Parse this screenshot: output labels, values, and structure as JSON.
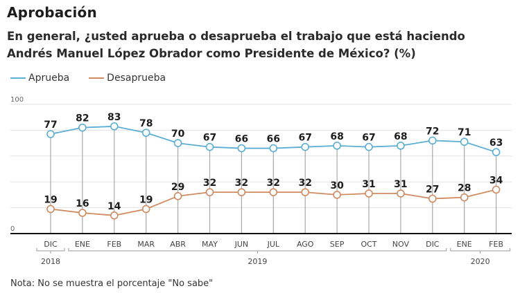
{
  "header": {
    "title": "Aprobación",
    "subtitle_line1": "En general, ¿usted aprueba o desaprueba el trabajo que está haciendo",
    "subtitle_line2": "Andrés Manuel López Obrador como Presidente de México?  (%)"
  },
  "legend": [
    {
      "label": "Aprueba",
      "color": "#5aaed3"
    },
    {
      "label": "Desaprueba",
      "color": "#cf8a60"
    }
  ],
  "note": "Nota: No se muestra el porcentaje \"No sabe\"",
  "chart_data": {
    "type": "line",
    "title": "Aprobación",
    "subtitle": "En general, ¿usted aprueba o desaprueba el trabajo que está haciendo Andrés Manuel López Obrador como Presidente de México?  (%)",
    "xlabel": "",
    "ylabel": "",
    "ylim": [
      0,
      100
    ],
    "y_ticks": [
      0,
      100
    ],
    "gridlines": [
      0,
      20,
      40,
      60,
      80,
      100
    ],
    "grid": true,
    "legend_position": "top-left",
    "categories": [
      "DIC",
      "ENE",
      "FEB",
      "MAR",
      "ABR",
      "MAY",
      "JUN",
      "JUL",
      "AGO",
      "SEP",
      "OCT",
      "NOV",
      "DIC",
      "ENE",
      "FEB"
    ],
    "year_groups": [
      {
        "label": "2018",
        "start": 0,
        "end": 0
      },
      {
        "label": "2019",
        "start": 1,
        "end": 12
      },
      {
        "label": "2020",
        "start": 13,
        "end": 14
      }
    ],
    "series": [
      {
        "name": "Aprueba",
        "color": "#5aaed3",
        "values": [
          77,
          82,
          83,
          78,
          70,
          67,
          66,
          66,
          67,
          68,
          67,
          68,
          72,
          71,
          63
        ]
      },
      {
        "name": "Desaprueba",
        "color": "#cf8a60",
        "values": [
          19,
          16,
          14,
          19,
          29,
          32,
          32,
          32,
          32,
          30,
          31,
          31,
          27,
          28,
          34
        ]
      }
    ]
  }
}
